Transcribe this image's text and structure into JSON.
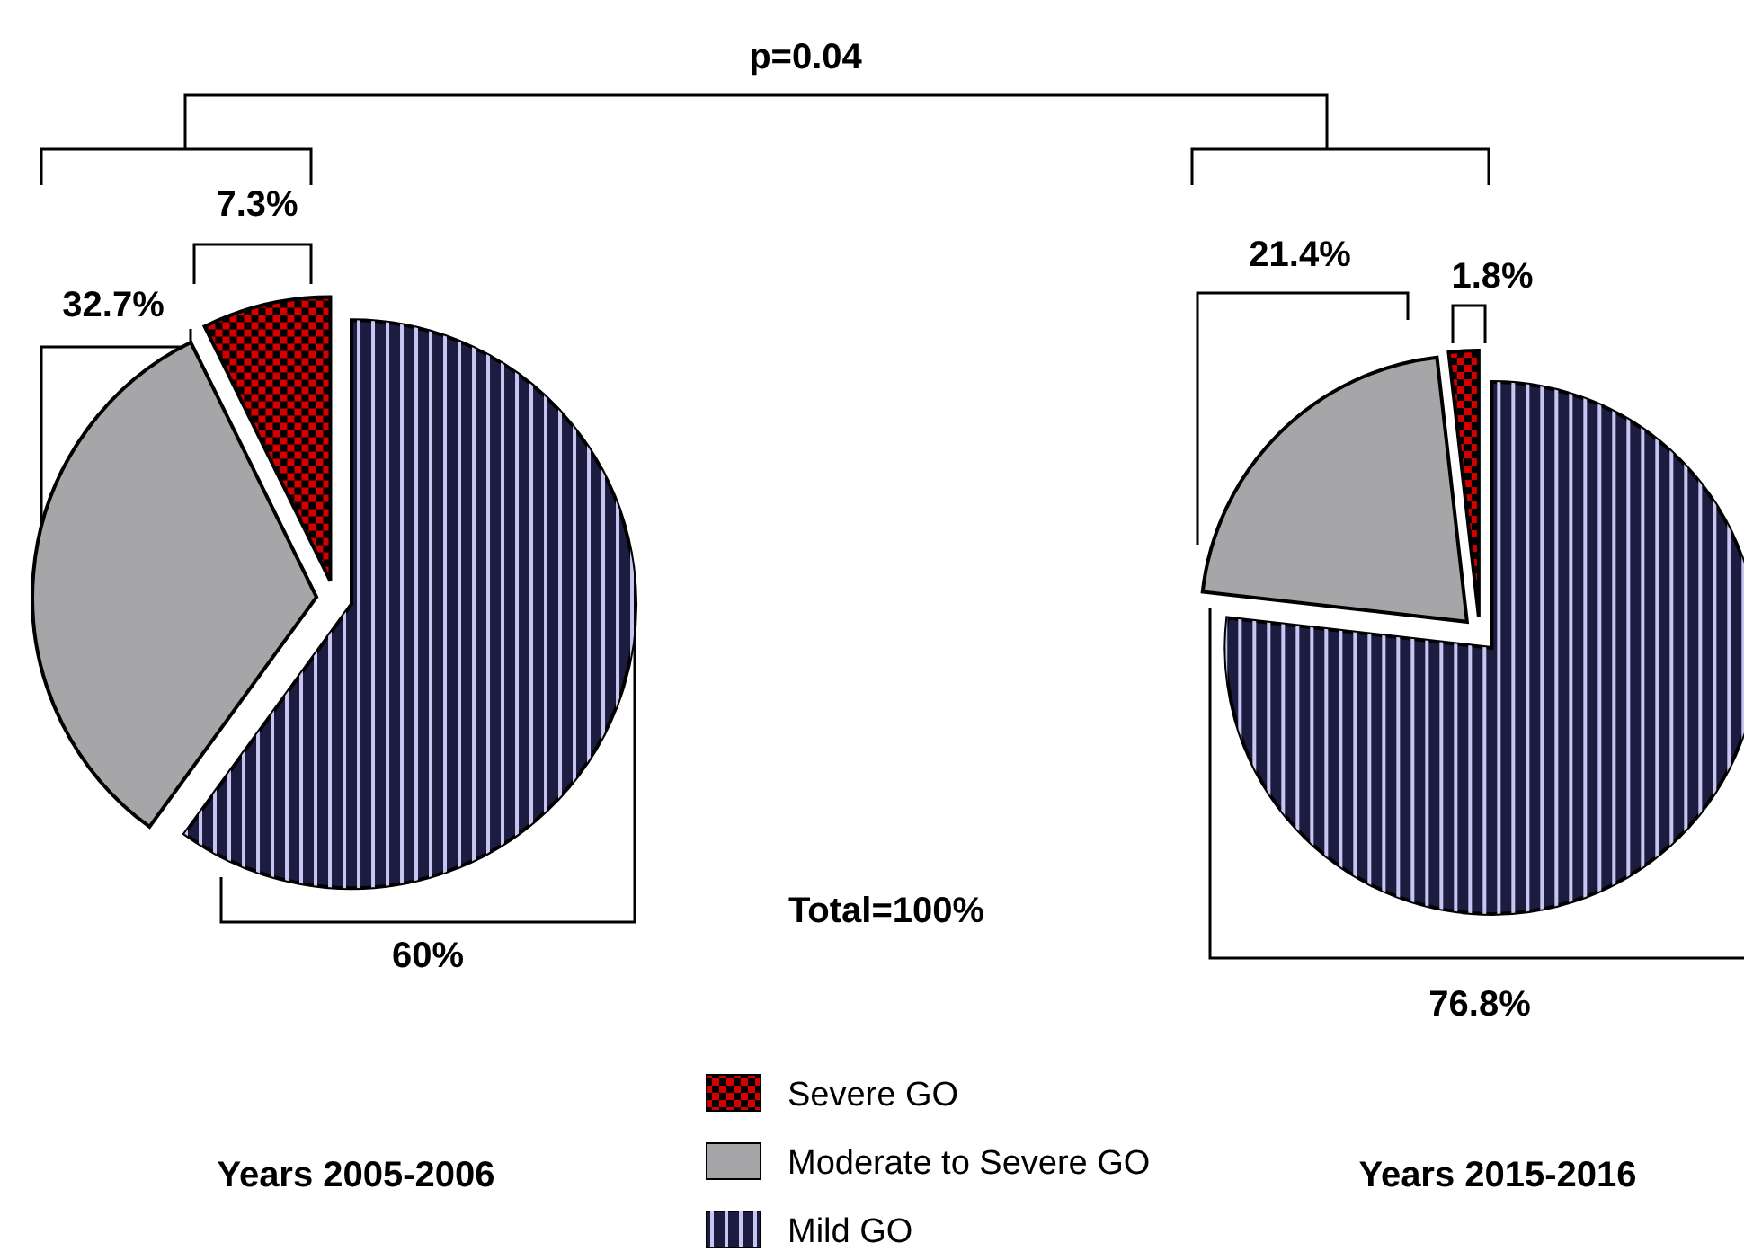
{
  "chart_data": [
    {
      "type": "pie",
      "title": "Years 2005-2006",
      "categories": [
        "Severe GO",
        "Moderate to Severe GO",
        "Mild GO"
      ],
      "values": [
        7.3,
        32.7,
        60
      ],
      "colors": [
        "#d40000",
        "#a6a6a8",
        "#1c1c40"
      ],
      "value_labels": [
        "7.3%",
        "32.7%",
        "60%"
      ],
      "legend": "bottom",
      "annotations": [
        "p=0.04",
        "Total=100%"
      ]
    },
    {
      "type": "pie",
      "title": "Years 2015-2016",
      "categories": [
        null,
        null,
        null
      ],
      "values": [
        1.8,
        21.4,
        76.8
      ],
      "colors": [
        "#d40000",
        "#a6a6a8",
        "#1c1c40"
      ],
      "value_labels": [
        "1.8%",
        "21.4%",
        "76.8%"
      ]
    }
  ]
}
